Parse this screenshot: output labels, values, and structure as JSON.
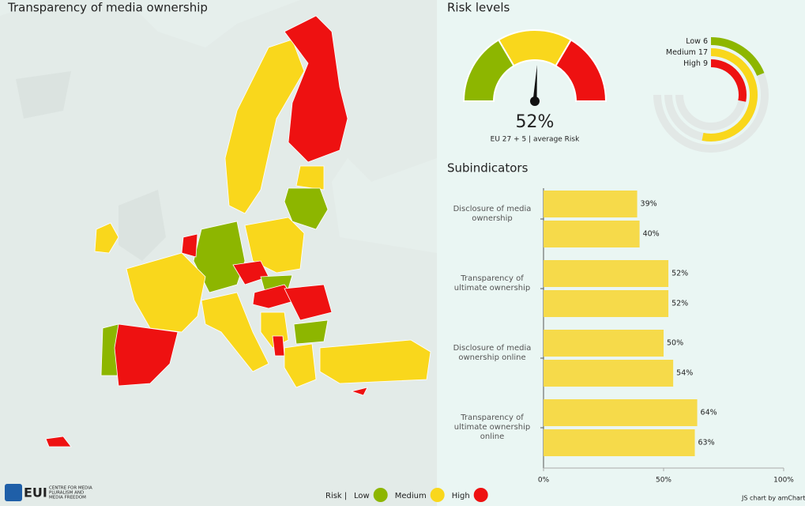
{
  "header": {
    "map_title": "Transparency of media ownership"
  },
  "chart_data": [
    {
      "type": "gauge",
      "title": "Risk levels",
      "value": 52,
      "value_label": "52%",
      "subtitle": "EU 27 + 5 | average Risk",
      "ylim": [
        0,
        100
      ],
      "needle_color": "#111111",
      "bands": [
        {
          "from": 0,
          "to": 33,
          "color": "#8db600"
        },
        {
          "from": 33,
          "to": 67,
          "color": "#f9d71c"
        },
        {
          "from": 67,
          "to": 100,
          "color": "#ee1111"
        }
      ]
    },
    {
      "type": "radial-bar",
      "categories": [
        "Low",
        "Medium",
        "High"
      ],
      "values": [
        6,
        17,
        9
      ],
      "colors": [
        "#8db600",
        "#f9d71c",
        "#ee1111"
      ],
      "xlim": [
        0,
        24
      ]
    },
    {
      "type": "bar",
      "orientation": "horizontal",
      "title": "Subindicators",
      "categories": [
        "Disclosure of media ownership",
        "Transparency of ultimate ownership",
        "Disclosure of media ownership online",
        "Transparency of ultimate ownership online"
      ],
      "series": [
        {
          "color": "#f6da4a",
          "values": [
            39,
            52,
            50,
            64
          ],
          "value_labels": [
            "39%",
            "52%",
            "50%",
            "64%"
          ]
        },
        {
          "color": "#f6da4a",
          "values": [
            40,
            52,
            54,
            63
          ],
          "value_labels": [
            "40%",
            "52%",
            "54%",
            "63%"
          ]
        }
      ],
      "xlim": [
        0,
        100
      ],
      "xticks": [
        {
          "value": 0,
          "label": "0%"
        },
        {
          "value": 50,
          "label": "50%"
        },
        {
          "value": 100,
          "label": "100%"
        }
      ]
    }
  ],
  "legend": {
    "title": "Risk",
    "separator": "|",
    "items": [
      "Low",
      "Medium",
      "High"
    ],
    "colors": [
      "#8db600",
      "#f9d71c",
      "#ee1111"
    ]
  },
  "footer": {
    "logo": "EUI",
    "logo_lines": [
      "CENTRE FOR MEDIA",
      "PLURALISM AND",
      "MEDIA FREEDOM"
    ],
    "credit": "JS chart by amCharts"
  }
}
